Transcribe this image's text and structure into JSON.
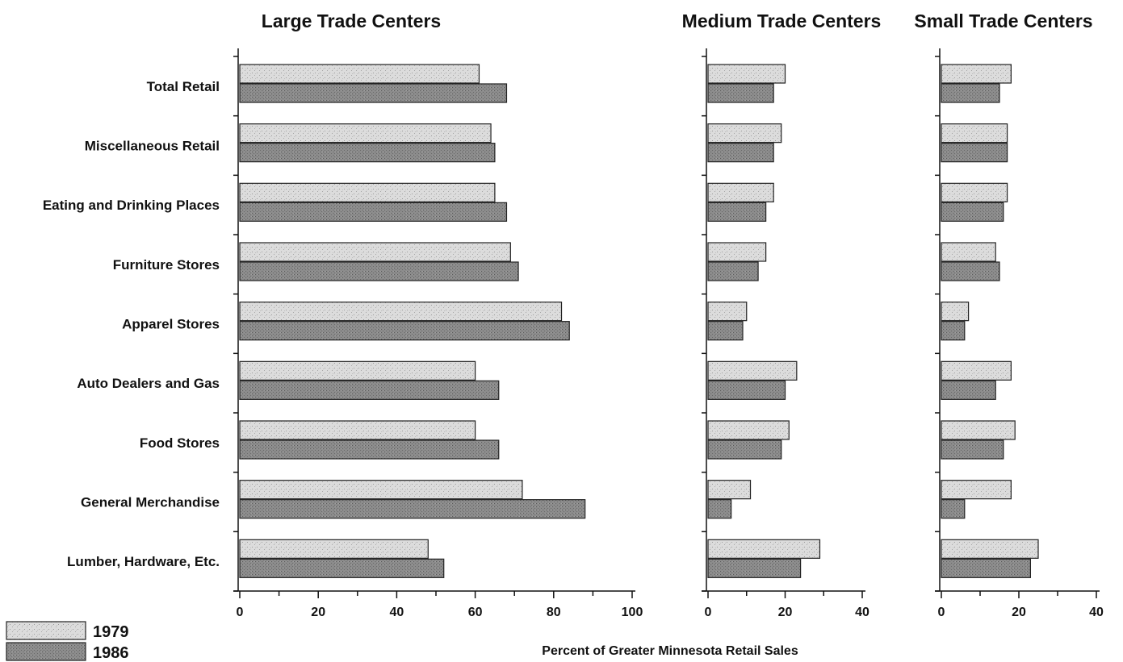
{
  "chart_data": {
    "type": "bar",
    "orientation": "horizontal",
    "xlabel": "Percent of Greater Minnesota Retail Sales",
    "legend": {
      "placement": "bottom-left",
      "entries": [
        {
          "name": "1979",
          "color": "#d9d9d9"
        },
        {
          "name": "1986",
          "color": "#8a8a8a"
        }
      ]
    },
    "categories": [
      "Total Retail",
      "Miscellaneous Retail",
      "Eating and Drinking Places",
      "Furniture Stores",
      "Apparel Stores",
      "Auto Dealers and Gas",
      "Food Stores",
      "General Merchandise",
      "Lumber, Hardware, Etc."
    ],
    "panels": [
      {
        "title": "Large Trade Centers",
        "xlim": [
          0,
          100
        ],
        "ticks": [
          0,
          20,
          40,
          60,
          80,
          100
        ],
        "series": [
          {
            "name": "1979",
            "values": [
              61,
              64,
              65,
              69,
              82,
              60,
              60,
              72,
              48
            ]
          },
          {
            "name": "1986",
            "values": [
              68,
              65,
              68,
              71,
              84,
              66,
              66,
              88,
              52
            ]
          }
        ]
      },
      {
        "title": "Medium Trade Centers",
        "xlim": [
          0,
          40
        ],
        "ticks": [
          0,
          20,
          40
        ],
        "series": [
          {
            "name": "1979",
            "values": [
              20,
              19,
              17,
              15,
              10,
              23,
              21,
              11,
              29
            ]
          },
          {
            "name": "1986",
            "values": [
              17,
              17,
              15,
              13,
              9,
              20,
              19,
              6,
              24
            ]
          }
        ]
      },
      {
        "title": "Small Trade Centers",
        "xlim": [
          0,
          40
        ],
        "ticks": [
          0,
          20,
          40
        ],
        "series": [
          {
            "name": "1979",
            "values": [
              18,
              17,
              17,
              14,
              7,
              18,
              19,
              18,
              25
            ]
          },
          {
            "name": "1986",
            "values": [
              15,
              17,
              16,
              15,
              6,
              14,
              16,
              6,
              23
            ]
          }
        ]
      }
    ]
  }
}
